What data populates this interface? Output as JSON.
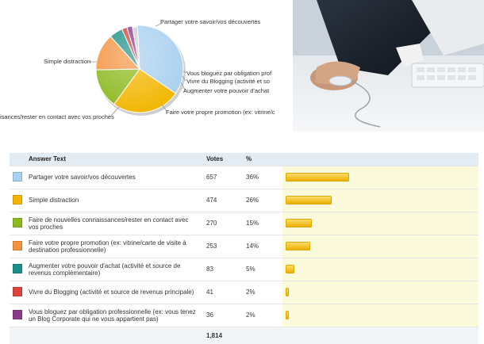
{
  "pie": {
    "labels": [
      "Partager votre savoir/vos découvertes",
      "Simple distraction",
      "isances/rester en contact avec vos proches",
      "Faire votre propre promotion (ex: vitrine/c",
      "Augmenter votre pouvoir d'achat",
      "Vivre du Blogging (activité et so",
      "Vous bloguez par obligation prof"
    ]
  },
  "table": {
    "headers": {
      "answer": "Answer Text",
      "votes": "Votes",
      "percent": "%"
    },
    "rows": [
      {
        "color": "#a9d0f0",
        "answer": "Partager votre savoir/vos découvertes",
        "votes": "657",
        "percent": "36%",
        "value": 36
      },
      {
        "color": "#f2b600",
        "answer": "Simple distraction",
        "votes": "474",
        "percent": "26%",
        "value": 26
      },
      {
        "color": "#8bb91e",
        "answer": "Faire de nouvelles connaissances/rester en contact avec vos proches",
        "votes": "270",
        "percent": "15%",
        "value": 15
      },
      {
        "color": "#f5923e",
        "answer": "Faire votre propre promotion (ex: vitrine/carte de visite à destination professionnelle)",
        "votes": "253",
        "percent": "14%",
        "value": 14
      },
      {
        "color": "#1b8f87",
        "answer": "Augmenter votre pouvoir d'achat (activité et source de revenus complémentaire)",
        "votes": "83",
        "percent": "5%",
        "value": 5
      },
      {
        "color": "#d9443c",
        "answer": "Vivre du Blogging (activité et source de revenus principale)",
        "votes": "41",
        "percent": "2%",
        "value": 2
      },
      {
        "color": "#8a3a8c",
        "answer": "Vous bloguez par obligation professionnelle (ex: vous tenez un Blog Corporate qui ne vous appartient pas)",
        "votes": "36",
        "percent": "2%",
        "value": 2
      }
    ],
    "total": "1,814"
  }
}
